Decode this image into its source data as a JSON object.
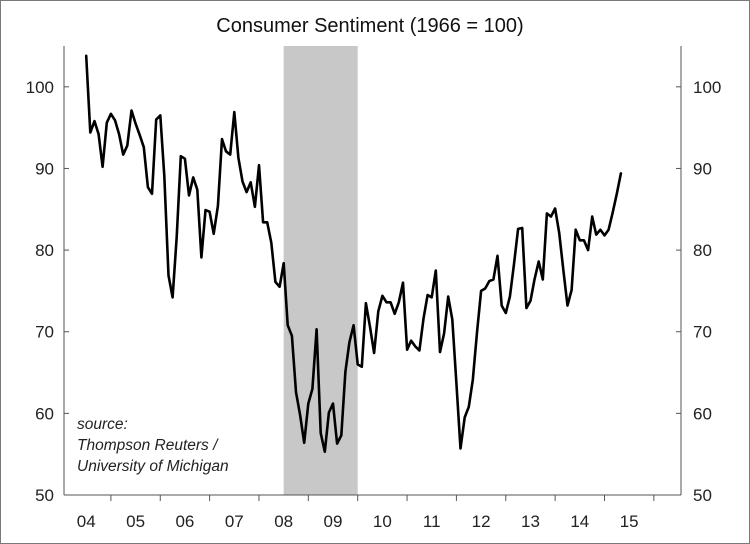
{
  "chart_data": {
    "type": "line",
    "title": "Consumer Sentiment",
    "title_suffix": "(1966 = 100)",
    "xlabel": "",
    "ylabel": "",
    "ylim": [
      50,
      105
    ],
    "xlim": [
      2003.55,
      2016.05
    ],
    "y_ticks": [
      50,
      60,
      70,
      80,
      90,
      100
    ],
    "x_ticks": [
      {
        "label": "04",
        "pos": 2004.0
      },
      {
        "label": "05",
        "pos": 2005.0
      },
      {
        "label": "06",
        "pos": 2006.0
      },
      {
        "label": "07",
        "pos": 2007.0
      },
      {
        "label": "08",
        "pos": 2008.0
      },
      {
        "label": "09",
        "pos": 2009.0
      },
      {
        "label": "10",
        "pos": 2010.0
      },
      {
        "label": "11",
        "pos": 2011.0
      },
      {
        "label": "12",
        "pos": 2012.0
      },
      {
        "label": "13",
        "pos": 2013.0
      },
      {
        "label": "14",
        "pos": 2014.0
      },
      {
        "label": "15",
        "pos": 2015.0
      }
    ],
    "recession": {
      "start": 2008.0,
      "end": 2009.5,
      "color": "#c8c8c8"
    },
    "line_color": "#000000",
    "annotation": [
      "source:",
      "Thompson Reuters /",
      "University of Michigan"
    ],
    "series": [
      {
        "name": "",
        "x": [
          2004.0,
          2004.083,
          2004.167,
          2004.25,
          2004.333,
          2004.417,
          2004.5,
          2004.583,
          2004.667,
          2004.75,
          2004.833,
          2004.917,
          2005.0,
          2005.083,
          2005.167,
          2005.25,
          2005.333,
          2005.417,
          2005.5,
          2005.583,
          2005.667,
          2005.75,
          2005.833,
          2005.917,
          2006.0,
          2006.083,
          2006.167,
          2006.25,
          2006.333,
          2006.417,
          2006.5,
          2006.583,
          2006.667,
          2006.75,
          2006.833,
          2006.917,
          2007.0,
          2007.083,
          2007.167,
          2007.25,
          2007.333,
          2007.417,
          2007.5,
          2007.583,
          2007.667,
          2007.75,
          2007.833,
          2007.917,
          2008.0,
          2008.083,
          2008.167,
          2008.25,
          2008.333,
          2008.417,
          2008.5,
          2008.583,
          2008.667,
          2008.75,
          2008.833,
          2008.917,
          2009.0,
          2009.083,
          2009.167,
          2009.25,
          2009.333,
          2009.417,
          2009.5,
          2009.583,
          2009.667,
          2009.75,
          2009.833,
          2009.917,
          2010.0,
          2010.083,
          2010.167,
          2010.25,
          2010.333,
          2010.417,
          2010.5,
          2010.583,
          2010.667,
          2010.75,
          2010.833,
          2010.917,
          2011.0,
          2011.083,
          2011.167,
          2011.25,
          2011.333,
          2011.417,
          2011.5,
          2011.583,
          2011.667,
          2011.75,
          2011.833,
          2011.917,
          2012.0,
          2012.083,
          2012.167,
          2012.25,
          2012.333,
          2012.417,
          2012.5,
          2012.583,
          2012.667,
          2012.75,
          2012.833,
          2012.917,
          2013.0,
          2013.083,
          2013.167,
          2013.25,
          2013.333,
          2013.417,
          2013.5,
          2013.583,
          2013.667,
          2013.75,
          2013.833,
          2013.917,
          2014.0,
          2014.083,
          2014.167,
          2014.25,
          2014.333,
          2014.417,
          2014.5,
          2014.583,
          2014.667,
          2014.75,
          2014.833
        ],
        "values": [
          103.8,
          94.4,
          95.8,
          94.2,
          90.2,
          95.6,
          96.7,
          95.9,
          94.2,
          91.7,
          92.8,
          97.1,
          95.5,
          94.1,
          92.6,
          87.7,
          86.9,
          96.0,
          96.5,
          89.1,
          76.9,
          74.2,
          81.6,
          91.5,
          91.2,
          86.7,
          88.9,
          87.4,
          79.1,
          84.9,
          84.7,
          82.0,
          85.4,
          93.6,
          92.1,
          91.7,
          96.9,
          91.3,
          88.4,
          87.1,
          88.3,
          85.3,
          90.4,
          83.4,
          83.4,
          80.9,
          76.1,
          75.5,
          78.4,
          70.8,
          69.5,
          62.6,
          59.8,
          56.4,
          61.2,
          63.0,
          70.3,
          57.6,
          55.3,
          60.1,
          61.2,
          56.3,
          57.3,
          65.1,
          68.7,
          70.8,
          66.0,
          65.7,
          73.5,
          70.6,
          67.4,
          72.5,
          74.4,
          73.6,
          73.6,
          72.2,
          73.6,
          76.0,
          67.8,
          68.9,
          68.2,
          67.7,
          71.6,
          74.5,
          74.2,
          77.5,
          67.5,
          69.8,
          74.3,
          71.5,
          63.7,
          55.7,
          59.5,
          60.8,
          64.1,
          69.9,
          75.0,
          75.3,
          76.2,
          76.4,
          79.3,
          73.2,
          72.3,
          74.3,
          78.3,
          82.6,
          82.7,
          72.9,
          73.8,
          76.4,
          78.6,
          76.4,
          84.5,
          84.1,
          85.1,
          82.1,
          77.5,
          73.2,
          75.1,
          82.5,
          81.2,
          81.2,
          80.0,
          84.1,
          81.9,
          82.5,
          81.8,
          82.5,
          84.6,
          86.9,
          89.4
        ]
      }
    ]
  }
}
